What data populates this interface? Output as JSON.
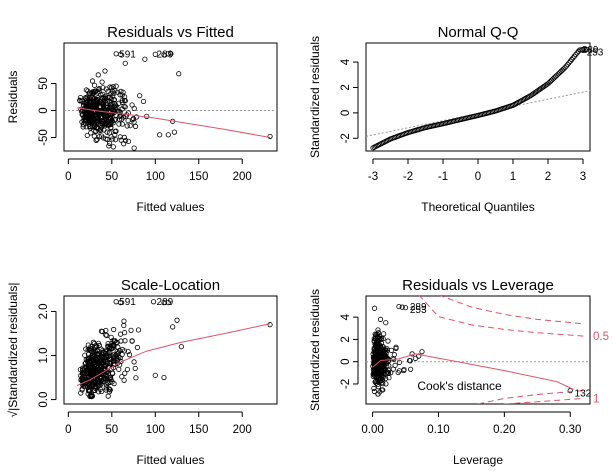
{
  "chart_data": [
    {
      "id": "rvf",
      "type": "scatter",
      "title": "Residuals vs Fitted",
      "xlabel": "Fitted values",
      "ylabel": "Residuals",
      "xlim": [
        -5,
        240
      ],
      "ylim": [
        -75,
        125
      ],
      "xticks": [
        0,
        50,
        100,
        150,
        200
      ],
      "yticks": [
        -50,
        0,
        50
      ],
      "reference_line": {
        "type": "h",
        "value": 0
      },
      "labels": [
        {
          "text": "591",
          "x": 55,
          "y": 105
        },
        {
          "text": "289",
          "x": 98,
          "y": 105
        }
      ],
      "smooth": [
        [
          10,
          5
        ],
        [
          30,
          0
        ],
        [
          50,
          -4
        ],
        [
          70,
          -8
        ],
        [
          100,
          -14
        ],
        [
          130,
          -22
        ],
        [
          180,
          -35
        ],
        [
          232,
          -50
        ]
      ],
      "seed": 7,
      "n": 420,
      "points": [
        [
          232,
          -48
        ],
        [
          127,
          68
        ],
        [
          115,
          105
        ],
        [
          118,
          105
        ],
        [
          110,
          103
        ],
        [
          55,
          105
        ],
        [
          60,
          104
        ],
        [
          100,
          104
        ],
        [
          88,
          95
        ],
        [
          120,
          -20
        ],
        [
          122,
          -40
        ],
        [
          105,
          -45
        ],
        [
          115,
          -45
        ]
      ]
    },
    {
      "id": "qq",
      "type": "scatter",
      "title": "Normal Q-Q",
      "xlabel": "Theoretical Quantiles",
      "ylabel": "Standardized residuals",
      "xlim": [
        -3.2,
        3.2
      ],
      "ylim": [
        -3,
        5.5
      ],
      "xticks": [
        -3,
        -2,
        -1,
        0,
        1,
        2,
        3
      ],
      "yticks": [
        -2,
        0,
        2,
        4
      ],
      "reference_line": {
        "type": "ab",
        "from": [
          -3.2,
          -1.85
        ],
        "to": [
          3.2,
          1.75
        ]
      },
      "labels": [
        {
          "text": "289",
          "x": 2.88,
          "y": 5.0
        },
        {
          "text": "253",
          "x": 3.02,
          "y": 4.78
        }
      ],
      "qq": [
        [
          -3.0,
          -2.75
        ],
        [
          -2.5,
          -2.05
        ],
        [
          -2.0,
          -1.55
        ],
        [
          -1.5,
          -1.15
        ],
        [
          -1.0,
          -0.85
        ],
        [
          -0.5,
          -0.52
        ],
        [
          0.0,
          -0.2
        ],
        [
          0.5,
          0.15
        ],
        [
          1.0,
          0.6
        ],
        [
          1.5,
          1.35
        ],
        [
          2.0,
          2.3
        ],
        [
          2.5,
          3.6
        ],
        [
          2.9,
          4.95
        ],
        [
          3.1,
          5.0
        ]
      ],
      "n": 160
    },
    {
      "id": "sl",
      "type": "scatter",
      "title": "Scale-Location",
      "xlabel": "Fitted values",
      "ylabel": "√|Standardized residuals|",
      "xlim": [
        -5,
        240
      ],
      "ylim": [
        -0.1,
        2.35
      ],
      "xticks": [
        0,
        50,
        100,
        150,
        200
      ],
      "yticks": [
        0.0,
        1.0,
        2.0
      ],
      "labels": [
        {
          "text": "591",
          "x": 55,
          "y": 2.22
        },
        {
          "text": "289",
          "x": 98,
          "y": 2.22
        }
      ],
      "smooth": [
        [
          10,
          0.32
        ],
        [
          25,
          0.45
        ],
        [
          40,
          0.62
        ],
        [
          60,
          0.85
        ],
        [
          90,
          1.1
        ],
        [
          130,
          1.3
        ],
        [
          180,
          1.5
        ],
        [
          232,
          1.72
        ]
      ],
      "seed": 11,
      "n": 420,
      "points": [
        [
          232,
          1.7
        ],
        [
          55,
          2.22
        ],
        [
          60,
          2.2
        ],
        [
          98,
          2.22
        ],
        [
          110,
          2.2
        ],
        [
          115,
          2.2
        ],
        [
          120,
          1.65
        ],
        [
          125,
          1.8
        ],
        [
          130,
          1.2
        ],
        [
          110,
          0.5
        ],
        [
          100,
          0.55
        ]
      ]
    },
    {
      "id": "rvl",
      "type": "scatter",
      "title": "Residuals vs Leverage",
      "xlabel": "Leverage",
      "ylabel": "Standardized residuals",
      "xlim": [
        -0.01,
        0.33
      ],
      "ylim": [
        -3.8,
        5.9
      ],
      "xticks": [
        0.0,
        0.1,
        0.2,
        0.3
      ],
      "xtick_labels": [
        "0.00",
        "0.10",
        "0.20",
        "0.30"
      ],
      "yticks": [
        -2,
        0,
        2,
        4
      ],
      "reference_line": {
        "type": "h",
        "value": 0
      },
      "labels": [
        {
          "text": "289",
          "x": 0.052,
          "y": 4.95
        },
        {
          "text": "253",
          "x": 0.052,
          "y": 4.7
        },
        {
          "text": "132",
          "x": 0.302,
          "y": -2.8
        }
      ],
      "cooks_label": "Cook's distance",
      "cooks_levels": [
        {
          "label": "0.5"
        },
        {
          "label": "1"
        }
      ],
      "cooks": {
        "upper_1": [
          [
            0.1,
            6.0
          ],
          [
            0.15,
            4.9
          ],
          [
            0.2,
            4.25
          ],
          [
            0.25,
            3.8
          ],
          [
            0.32,
            3.4
          ]
        ],
        "upper_05": [
          [
            0.07,
            6.0
          ],
          [
            0.1,
            4.05
          ],
          [
            0.15,
            3.3
          ],
          [
            0.2,
            2.9
          ],
          [
            0.25,
            2.6
          ],
          [
            0.32,
            2.3
          ]
        ],
        "lower_05": [
          [
            0.16,
            -3.8
          ],
          [
            0.2,
            -3.3
          ],
          [
            0.25,
            -2.95
          ],
          [
            0.32,
            -2.6
          ]
        ],
        "lower_1": [
          [
            0.2,
            -3.8
          ],
          [
            0.25,
            -3.6
          ],
          [
            0.32,
            -3.3
          ]
        ]
      },
      "smooth": [
        [
          0.0,
          -0.5
        ],
        [
          0.012,
          0.1
        ],
        [
          0.04,
          0.25
        ],
        [
          0.065,
          0.7
        ],
        [
          0.12,
          0.1
        ],
        [
          0.2,
          -0.8
        ],
        [
          0.28,
          -1.8
        ],
        [
          0.305,
          -2.5
        ]
      ],
      "seed": 23,
      "n": 380,
      "points": [
        [
          0.3,
          -2.6
        ],
        [
          0.04,
          4.95
        ],
        [
          0.045,
          4.9
        ],
        [
          0.05,
          4.85
        ],
        [
          0.003,
          4.8
        ],
        [
          0.012,
          3.8
        ],
        [
          0.02,
          3.5
        ],
        [
          0.008,
          -2.9
        ],
        [
          0.002,
          -2.4
        ],
        [
          0.06,
          0.7
        ],
        [
          0.07,
          0.5
        ],
        [
          0.075,
          0.9
        ],
        [
          0.065,
          0.3
        ]
      ]
    }
  ]
}
